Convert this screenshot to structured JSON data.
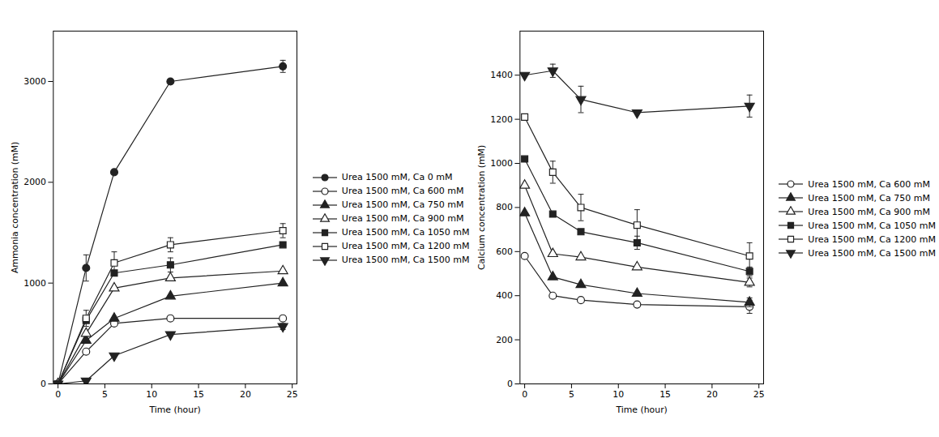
{
  "chart_data": [
    {
      "type": "line",
      "xlabel": "Time (hour)",
      "ylabel": "Ammonia concentration (mM)",
      "x": [
        0,
        3,
        6,
        12,
        24
      ],
      "xlim": [
        -0.5,
        25.5
      ],
      "xticks": [
        0,
        5,
        10,
        15,
        20,
        25
      ],
      "ylim": [
        0,
        3500
      ],
      "yticks": [
        0,
        1000,
        2000,
        3000
      ],
      "legend": "right",
      "series": [
        {
          "name": "Urea 1500 mM, Ca 0 mM",
          "color": "#222222",
          "marker": "circle",
          "values": [
            0,
            1150,
            2100,
            3000,
            3150
          ],
          "yerr": [
            0,
            130,
            0,
            0,
            60
          ]
        },
        {
          "name": "Urea 1500 mM, Ca 600 mM",
          "color": "#222222",
          "marker": "circle-open",
          "values": [
            0,
            320,
            600,
            650,
            650
          ],
          "yerr": [
            0,
            0,
            0,
            0,
            0
          ]
        },
        {
          "name": "Urea 1500 mM, Ca 750 mM",
          "color": "#222222",
          "marker": "triangle-up",
          "values": [
            0,
            430,
            650,
            870,
            1000
          ],
          "yerr": [
            0,
            0,
            0,
            0,
            0
          ]
        },
        {
          "name": "Urea 1500 mM, Ca 900 mM",
          "color": "#222222",
          "marker": "triangle-up-open",
          "values": [
            0,
            500,
            950,
            1050,
            1120
          ],
          "yerr": [
            0,
            0,
            0,
            0,
            0
          ]
        },
        {
          "name": "Urea 1500 mM, Ca 1050 mM",
          "color": "#222222",
          "marker": "square",
          "values": [
            0,
            630,
            1100,
            1180,
            1380
          ],
          "yerr": [
            0,
            0,
            0,
            70,
            0
          ]
        },
        {
          "name": "Urea 1500 mM, Ca 1200 mM",
          "color": "#222222",
          "marker": "square-open",
          "values": [
            0,
            650,
            1200,
            1380,
            1520
          ],
          "yerr": [
            0,
            80,
            110,
            70,
            70
          ]
        },
        {
          "name": "Urea 1500 mM, Ca 1500 mM",
          "color": "#222222",
          "marker": "triangle-down",
          "values": [
            0,
            30,
            280,
            490,
            570
          ],
          "yerr": [
            0,
            0,
            0,
            0,
            30
          ]
        }
      ]
    },
    {
      "type": "line",
      "xlabel": "Time (hour)",
      "ylabel": "Calcium concentration (mM)",
      "x": [
        0,
        3,
        6,
        12,
        24
      ],
      "xlim": [
        -0.5,
        25.5
      ],
      "xticks": [
        0,
        5,
        10,
        15,
        20,
        25
      ],
      "ylim": [
        0,
        1600
      ],
      "yticks": [
        0,
        200,
        400,
        600,
        800,
        1000,
        1200,
        1400
      ],
      "legend": "right",
      "series": [
        {
          "name": "Urea 1500 mM, Ca 600 mM",
          "color": "#222222",
          "marker": "circle-open",
          "values": [
            580,
            400,
            380,
            360,
            350
          ],
          "yerr": [
            0,
            0,
            0,
            0,
            30
          ]
        },
        {
          "name": "Urea 1500 mM, Ca 750 mM",
          "color": "#222222",
          "marker": "triangle-up",
          "values": [
            775,
            485,
            450,
            410,
            370
          ],
          "yerr": [
            0,
            0,
            0,
            0,
            20
          ]
        },
        {
          "name": "Urea 1500 mM, Ca 900 mM",
          "color": "#222222",
          "marker": "triangle-up-open",
          "values": [
            900,
            590,
            575,
            530,
            460
          ],
          "yerr": [
            0,
            0,
            0,
            0,
            20
          ]
        },
        {
          "name": "Urea 1500 mM, Ca 1050 mM",
          "color": "#222222",
          "marker": "square",
          "values": [
            1020,
            770,
            690,
            640,
            510
          ],
          "yerr": [
            0,
            0,
            0,
            30,
            20
          ]
        },
        {
          "name": "Urea 1500 mM, Ca 1200 mM",
          "color": "#222222",
          "marker": "square-open",
          "values": [
            1210,
            960,
            800,
            720,
            580
          ],
          "yerr": [
            0,
            50,
            60,
            70,
            60
          ]
        },
        {
          "name": "Urea 1500 mM, Ca 1500 mM",
          "color": "#222222",
          "marker": "triangle-down",
          "values": [
            1400,
            1420,
            1290,
            1230,
            1260
          ],
          "yerr": [
            0,
            30,
            60,
            0,
            50
          ]
        }
      ]
    }
  ]
}
